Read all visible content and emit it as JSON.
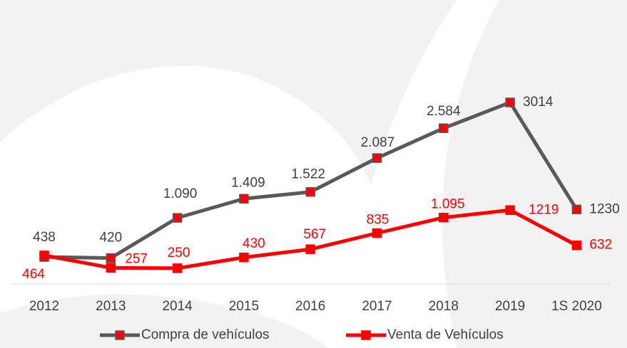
{
  "chart_data": {
    "type": "line",
    "categories": [
      "2012",
      "2013",
      "2014",
      "2015",
      "2016",
      "2017",
      "2018",
      "2019",
      "1S 2020"
    ],
    "series": [
      {
        "name": "Compra de vehículos",
        "color": "#595959",
        "marker_color": "#ff0000",
        "values": [
          438,
          420,
          1090,
          1409,
          1522,
          2087,
          2584,
          3014,
          1230
        ],
        "value_labels": [
          "438",
          "420",
          "1.090",
          "1.409",
          "1.522",
          "2.087",
          "2.584",
          "3014",
          "1230"
        ]
      },
      {
        "name": "Venta de Vehículos",
        "color": "#ff0000",
        "marker_color": "#ff0000",
        "values": [
          464,
          257,
          250,
          430,
          567,
          835,
          1095,
          1219,
          632
        ],
        "value_labels": [
          "464",
          "257",
          "250",
          "430",
          "567",
          "835",
          "1.095",
          "1219",
          "632"
        ]
      }
    ],
    "ylim": [
      0,
      3500
    ],
    "legend": "bottom"
  }
}
